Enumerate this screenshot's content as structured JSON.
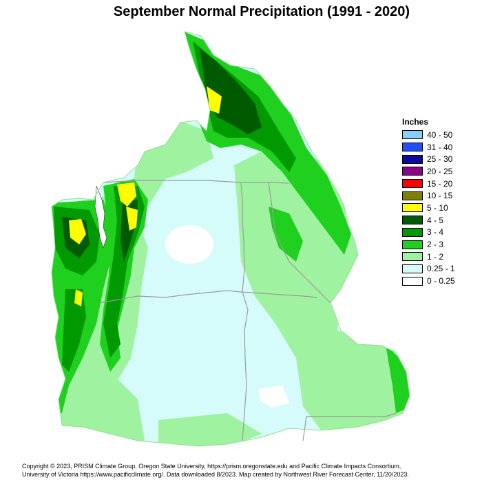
{
  "title": "September Normal Precipitation (1991 - 2020)",
  "legend": {
    "title": "Inches",
    "items": [
      {
        "label": "40 - 50",
        "color": "#87cefa"
      },
      {
        "label": "31 - 40",
        "color": "#1f4fff"
      },
      {
        "label": "25 - 30",
        "color": "#0a0aa0"
      },
      {
        "label": "20 - 25",
        "color": "#8b008b"
      },
      {
        "label": "15 - 20",
        "color": "#ff0000"
      },
      {
        "label": "10 - 15",
        "color": "#808000"
      },
      {
        "label": "5 - 10",
        "color": "#ffff00"
      },
      {
        "label": "4 - 5",
        "color": "#005a00"
      },
      {
        "label": "3 - 4",
        "color": "#009900"
      },
      {
        "label": "2 - 3",
        "color": "#1fd01f"
      },
      {
        "label": "1 - 2",
        "color": "#9ff29f"
      },
      {
        "label": "0.25 - 1",
        "color": "#d6fbfb"
      },
      {
        "label": "0 - 0.25",
        "color": "#ffffff"
      }
    ]
  },
  "credits": {
    "line1": "Copyright © 2023, PRISM Climate Group, Oregon State University, https://prism.oregonstate.edu and Pacific Climate Impacts Consortium,",
    "line2": "University of Victoria https://www.pacificclimate.org/.  Data downloaded 8/2023. Map created by Northwest River Forecast Center, 11/20/2023."
  }
}
